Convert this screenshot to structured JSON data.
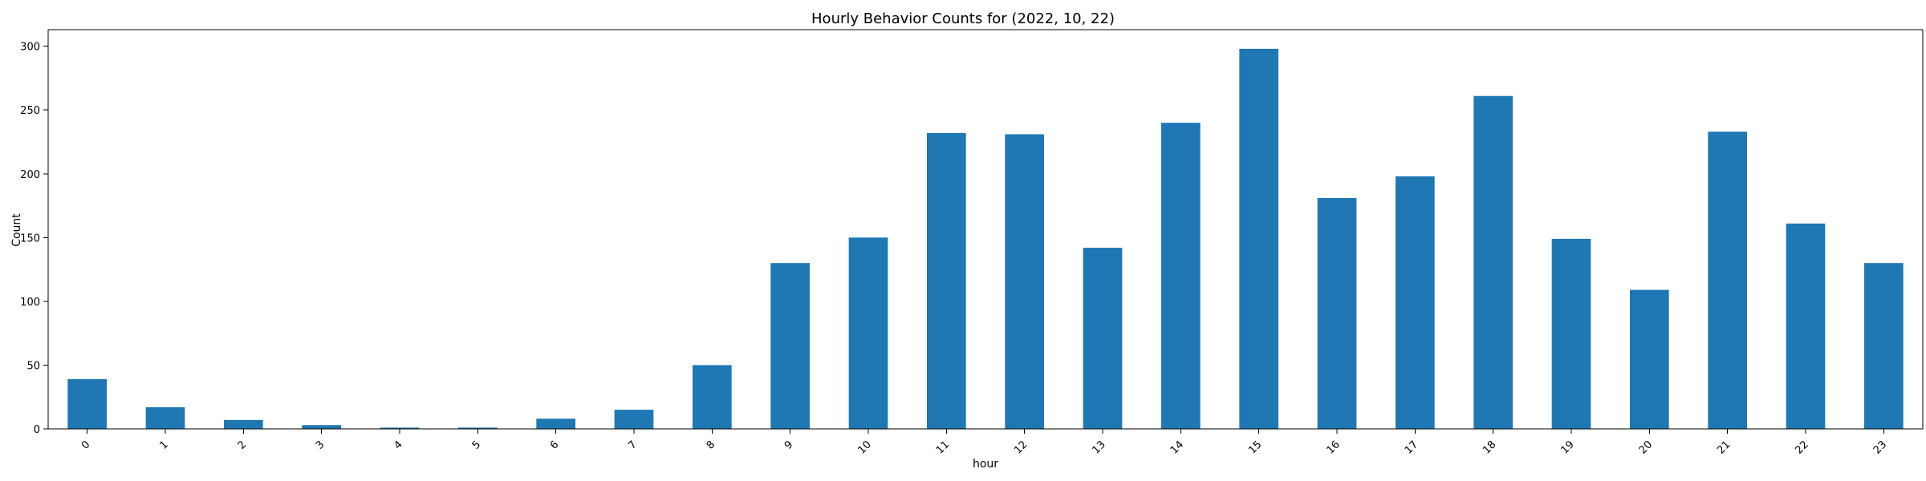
{
  "chart_data": {
    "type": "bar",
    "title": "Hourly Behavior Counts for (2022, 10, 22)",
    "xlabel": "hour",
    "ylabel": "Count",
    "categories": [
      "0",
      "1",
      "2",
      "3",
      "4",
      "5",
      "6",
      "7",
      "8",
      "9",
      "10",
      "11",
      "12",
      "13",
      "14",
      "15",
      "16",
      "17",
      "18",
      "19",
      "20",
      "21",
      "22",
      "23"
    ],
    "values": [
      39,
      17,
      7,
      3,
      1,
      1,
      8,
      15,
      50,
      130,
      150,
      232,
      231,
      142,
      240,
      298,
      181,
      198,
      261,
      149,
      109,
      233,
      161,
      130
    ],
    "yticks": [
      0,
      50,
      100,
      150,
      200,
      250,
      300
    ],
    "ylim": [
      0,
      313
    ],
    "grid": false,
    "bar_color": "#1f77b4",
    "xtick_rotation": 45
  }
}
